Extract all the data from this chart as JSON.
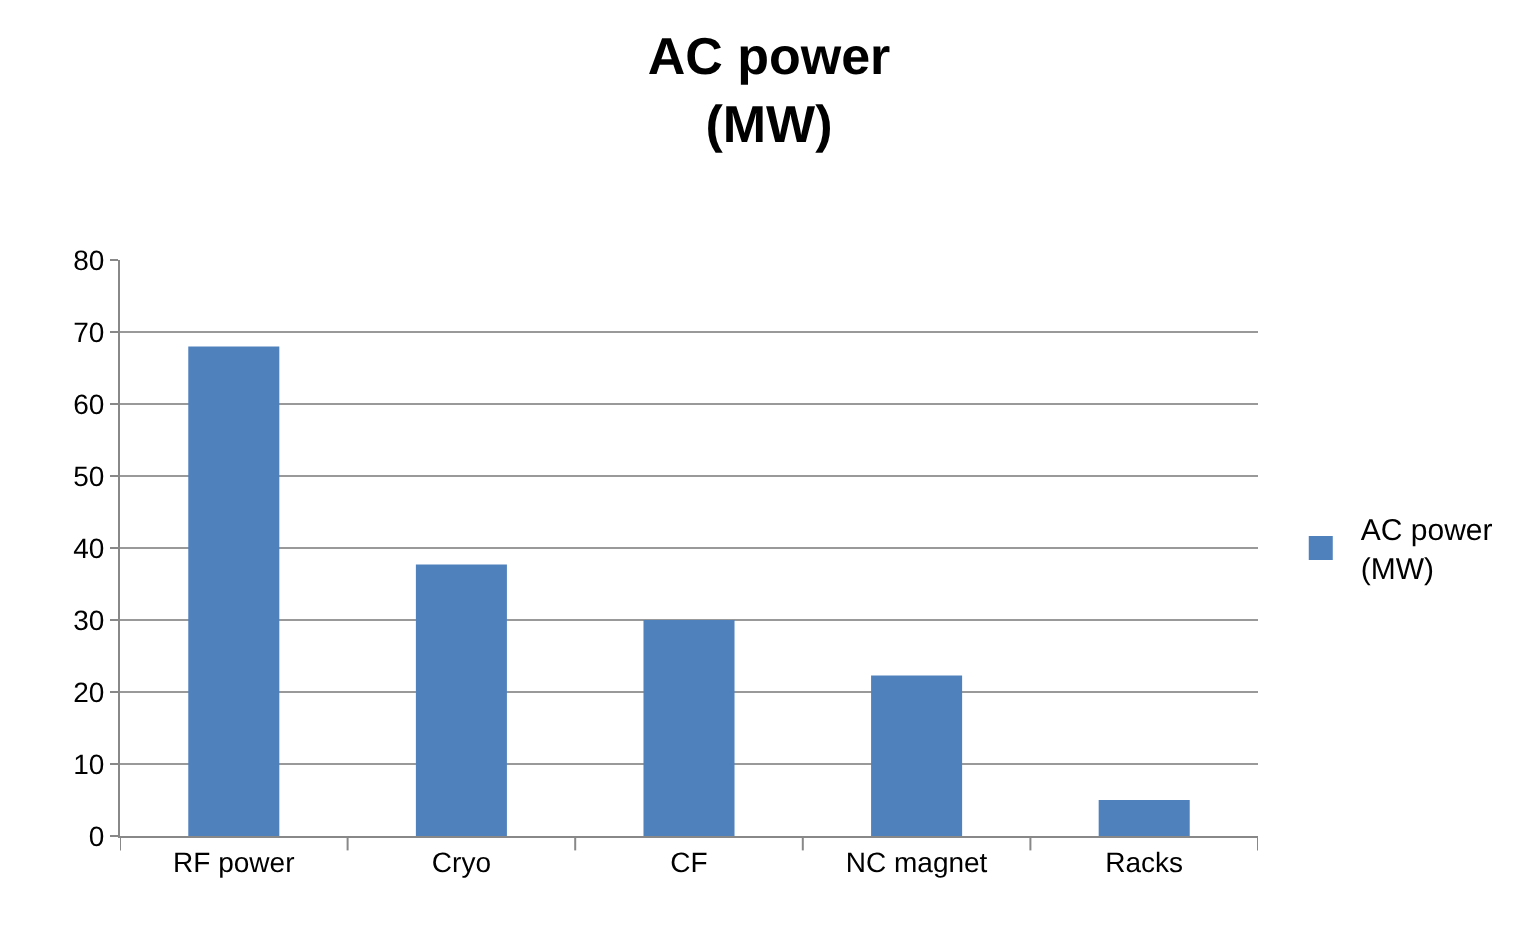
{
  "chart_data": {
    "type": "bar",
    "title": "AC power (MW)",
    "categories": [
      "RF power",
      "Cryo",
      "CF",
      "NC magnet",
      "Racks"
    ],
    "series": [
      {
        "name": "AC power (MW)",
        "color": "#4f81bd",
        "values": [
          68,
          37.7,
          30,
          22.3,
          5
        ]
      }
    ],
    "ylim": [
      0,
      80
    ],
    "yticks": [
      0,
      10,
      20,
      30,
      40,
      50,
      60,
      70,
      80
    ],
    "grid": "y",
    "legend": "right"
  }
}
